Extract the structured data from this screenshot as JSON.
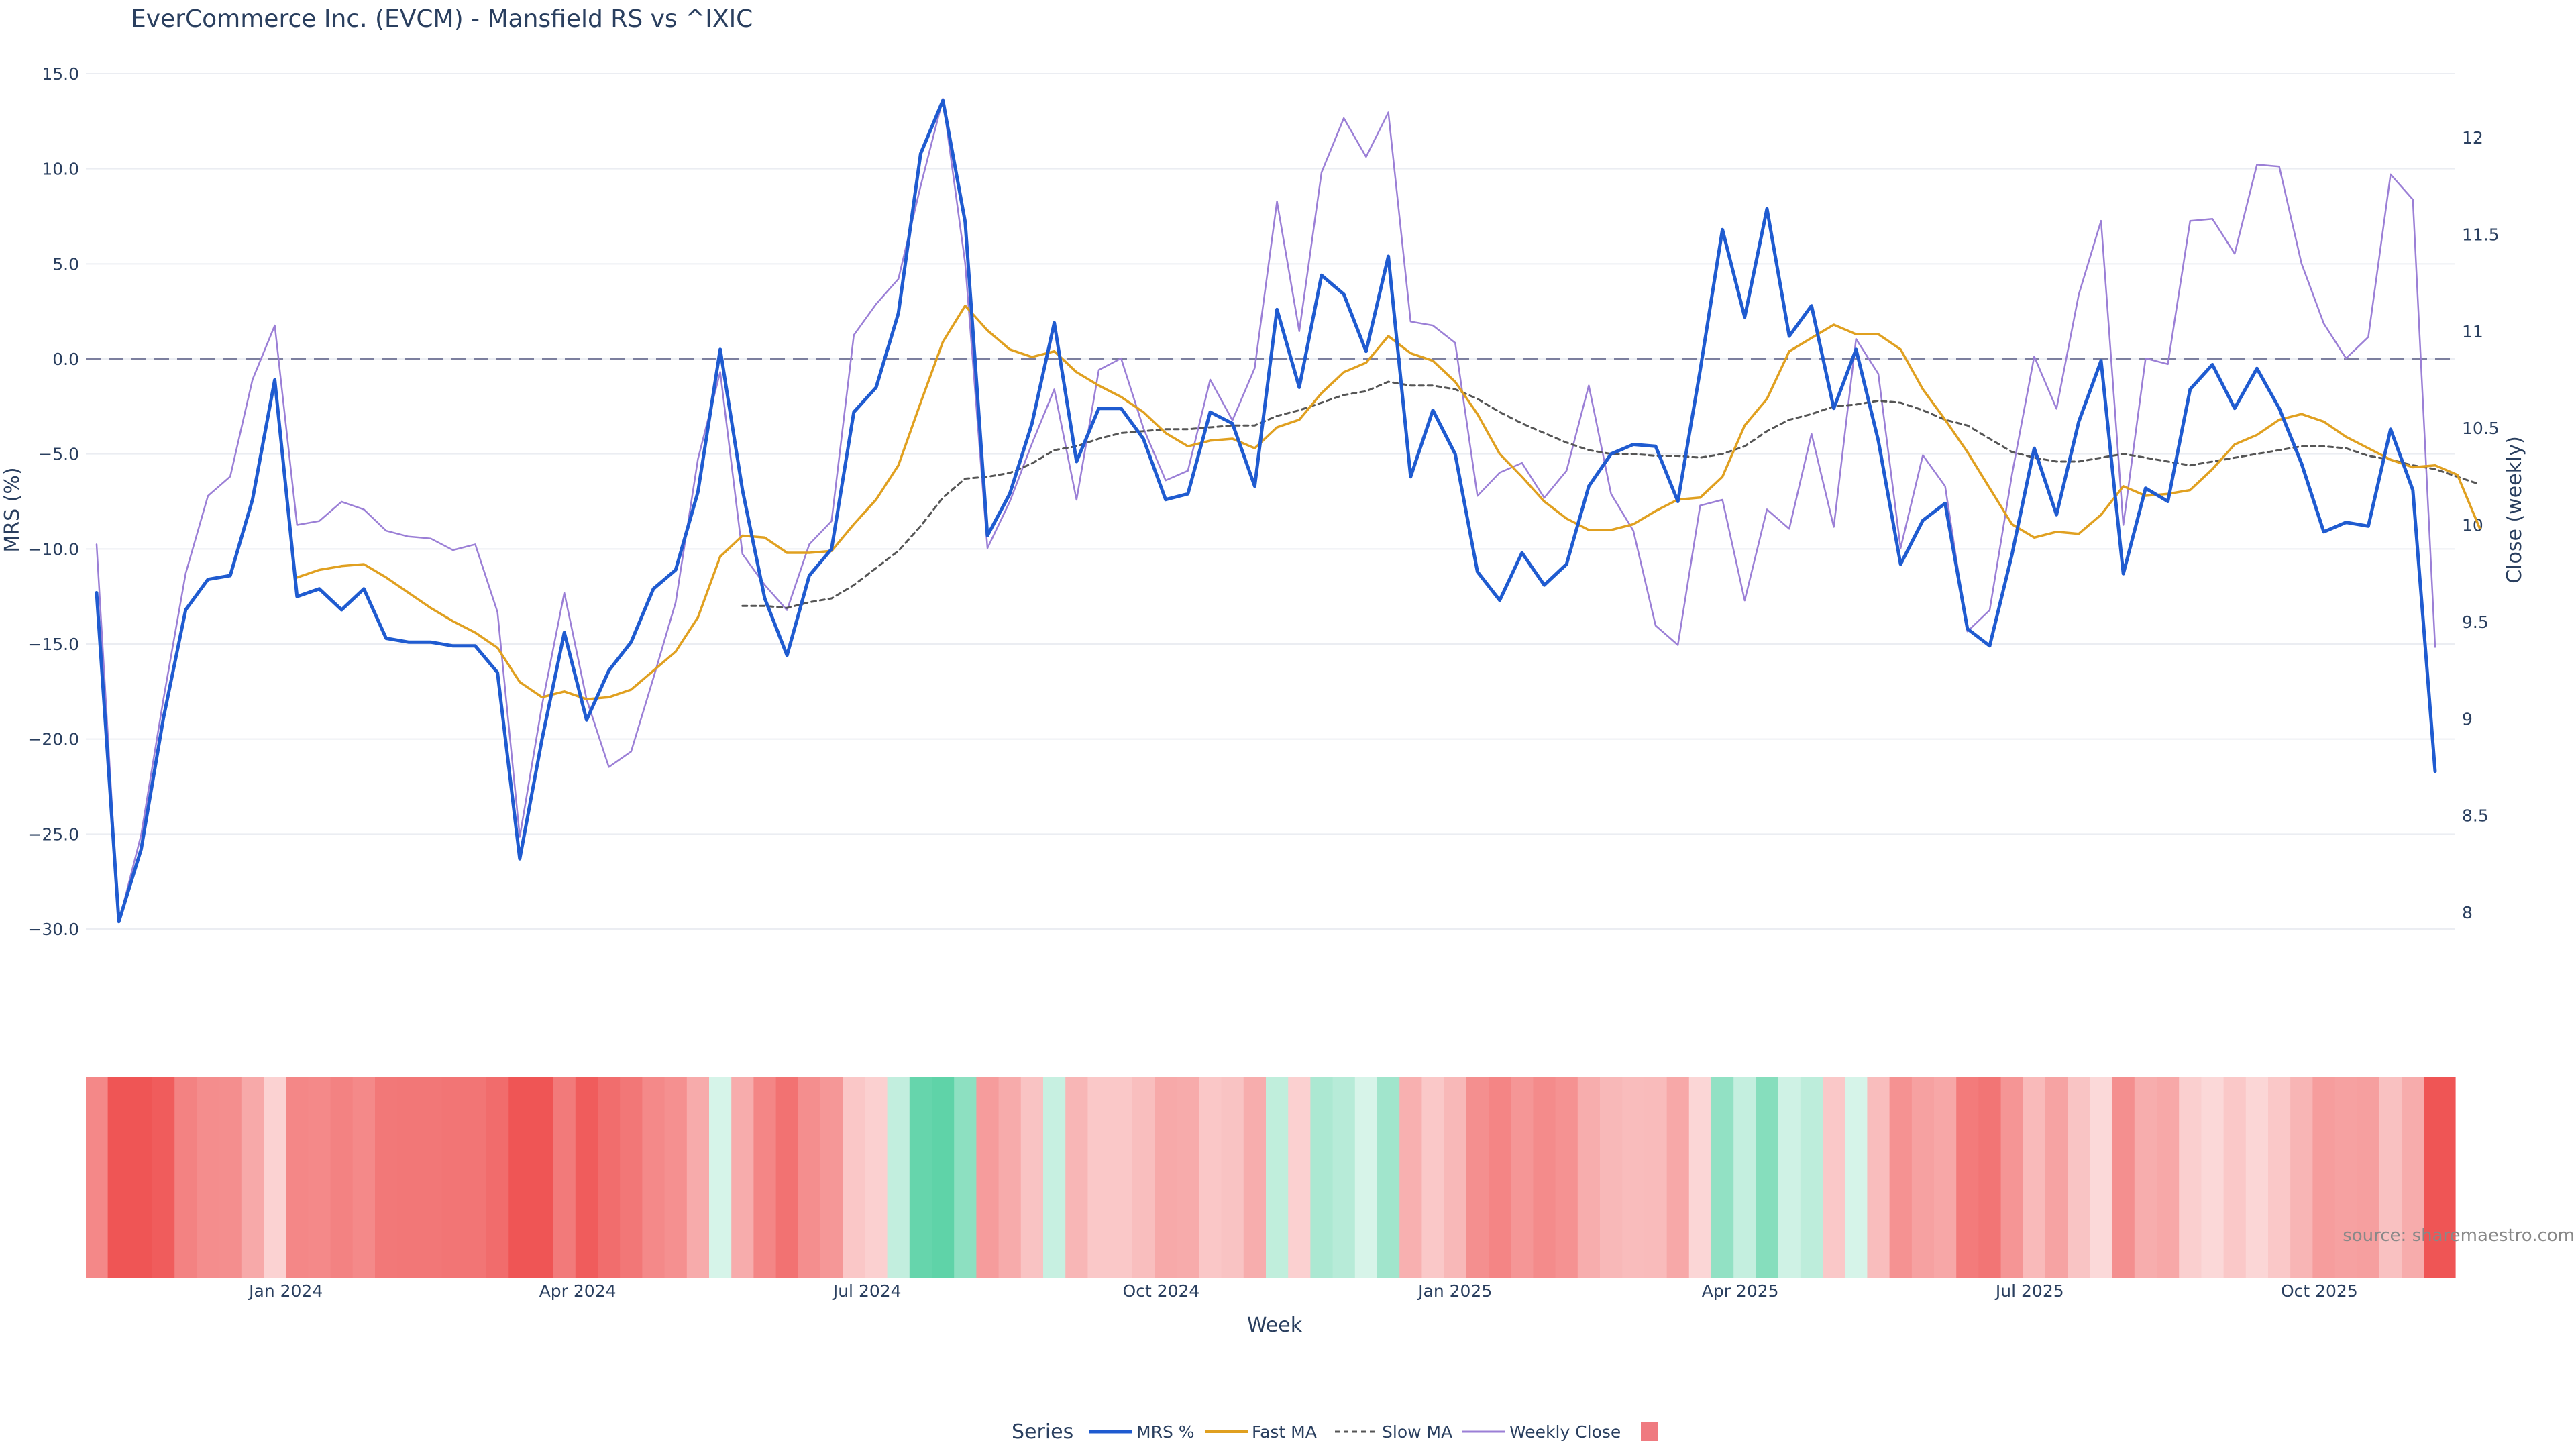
{
  "chart_data": {
    "type": "line",
    "title": "EverCommerce Inc. (EVCM) - Mansfield RS vs ^IXIC",
    "xlabel": "Week",
    "ylabel": "MRS (%)",
    "y2label": "Close (weekly)",
    "ylim": [
      -30,
      15
    ],
    "y2lim": [
      8,
      12
    ],
    "yticks": [
      "15.0",
      "10.0",
      "5.0",
      "0.0",
      "−5.0",
      "−10.0",
      "−15.0",
      "−20.0",
      "−25.0",
      "−30.0"
    ],
    "ytick_values": [
      15,
      10,
      5,
      0,
      -5,
      -10,
      -15,
      -20,
      -25,
      -30
    ],
    "y2ticks": [
      "12",
      "11.5",
      "11",
      "10.5",
      "10",
      "9.5",
      "9",
      "8.5",
      "8"
    ],
    "y2tick_values": [
      12,
      11.5,
      11,
      10.5,
      10,
      9.5,
      9,
      8.5,
      8
    ],
    "xticks": [
      {
        "label": "Jan 2024",
        "week": 8.5
      },
      {
        "label": "Apr 2024",
        "week": 21.6
      },
      {
        "label": "Jul 2024",
        "week": 34.6
      },
      {
        "label": "Oct 2024",
        "week": 47.8
      },
      {
        "label": "Jan 2025",
        "week": 61
      },
      {
        "label": "Apr 2025",
        "week": 73.8
      },
      {
        "label": "Jul 2025",
        "week": 86.8
      },
      {
        "label": "Oct 2025",
        "week": 99.8
      }
    ],
    "zero_line": 0,
    "weeks": 107,
    "series": [
      {
        "name": "MRS %",
        "color": "#1f5bd0",
        "axis": "y",
        "start": 0,
        "values": [
          -12.3,
          -29.6,
          -25.8,
          -18.9,
          -13.2,
          -11.6,
          -11.4,
          -7.4,
          -1.1,
          -12.5,
          -12.1,
          -13.2,
          -12.1,
          -14.7,
          -14.9,
          -14.9,
          -15.1,
          -15.1,
          -16.5,
          -26.3,
          -20,
          -14.4,
          -19,
          -16.4,
          -14.9,
          -12.1,
          -11.1,
          -7,
          0.5,
          -6.9,
          -12.6,
          -15.6,
          -11.4,
          -10,
          -2.8,
          -1.5,
          2.4,
          10.8,
          13.6,
          7.2,
          -9.3,
          -7.1,
          -3.4,
          1.9,
          -5.4,
          -2.6,
          -2.6,
          -4.2,
          -7.4,
          -7.1,
          -2.8,
          -3.4,
          -6.7,
          2.6,
          -1.5,
          4.4,
          3.4,
          0.4,
          5.4,
          -6.2,
          -2.7,
          -5,
          -11.2,
          -12.7,
          -10.2,
          -11.9,
          -10.8,
          -6.7,
          -5,
          -4.5,
          -4.6,
          -7.5,
          -0.6,
          6.8,
          2.2,
          7.9,
          1.2,
          2.8,
          -2.6,
          0.5,
          -4.3,
          -10.8,
          -8.5,
          -7.6,
          -14.2,
          -15.1,
          -10.3,
          -4.7,
          -8.2,
          -3.3,
          -0.1,
          -11.3,
          -6.8,
          -7.5,
          -1.6,
          -0.3,
          -2.6,
          -0.5,
          -2.6,
          -5.5,
          -9.1,
          -8.6,
          -8.8,
          -3.7,
          -6.9,
          -21.7
        ]
      },
      {
        "name": "Fast MA",
        "color": "#e0a020",
        "axis": "y",
        "start": 9,
        "values": [
          -11.5,
          -11.1,
          -10.9,
          -10.8,
          -11.5,
          -12.3,
          -13.1,
          -13.8,
          -14.4,
          -15.2,
          -17,
          -17.8,
          -17.5,
          -17.9,
          -17.8,
          -17.4,
          -16.4,
          -15.4,
          -13.6,
          -10.4,
          -9.3,
          -9.4,
          -10.2,
          -10.2,
          -10.1,
          -8.7,
          -7.4,
          -5.6,
          -2.3,
          0.9,
          2.8,
          1.5,
          0.5,
          0.1,
          0.4,
          -0.7,
          -1.4,
          -2,
          -2.8,
          -3.9,
          -4.6,
          -4.3,
          -4.2,
          -4.7,
          -3.6,
          -3.2,
          -1.8,
          -0.7,
          -0.2,
          1.2,
          0.3,
          -0.1,
          -1.2,
          -2.9,
          -5,
          -6.2,
          -7.5,
          -8.4,
          -9,
          -9,
          -8.7,
          -8,
          -7.4,
          -7.3,
          -6.2,
          -3.5,
          -2.1,
          0.4,
          1.1,
          1.8,
          1.3,
          1.3,
          0.5,
          -1.6,
          -3.2,
          -4.9,
          -6.8,
          -8.7,
          -9.4,
          -9.1,
          -9.2,
          -8.2,
          -6.7,
          -7.2,
          -7.1,
          -6.9,
          -5.8,
          -4.5,
          -4,
          -3.2,
          -2.9,
          -3.3,
          -4.1,
          -4.7,
          -5.3,
          -5.7,
          -5.6,
          -6.1,
          -8.9
        ]
      },
      {
        "name": "Slow MA",
        "color": "#555555",
        "axis": "y",
        "start": 29,
        "values": [
          -13,
          -13,
          -13.1,
          -12.8,
          -12.6,
          -11.9,
          -11,
          -10.1,
          -8.8,
          -7.3,
          -6.3,
          -6.2,
          -6,
          -5.5,
          -4.8,
          -4.6,
          -4.2,
          -3.9,
          -3.8,
          -3.7,
          -3.7,
          -3.6,
          -3.5,
          -3.5,
          -3,
          -2.7,
          -2.3,
          -1.9,
          -1.7,
          -1.2,
          -1.4,
          -1.4,
          -1.6,
          -2.1,
          -2.8,
          -3.4,
          -3.9,
          -4.4,
          -4.8,
          -5,
          -5,
          -5.1,
          -5.1,
          -5.2,
          -5,
          -4.6,
          -3.8,
          -3.2,
          -2.9,
          -2.5,
          -2.4,
          -2.2,
          -2.3,
          -2.7,
          -3.2,
          -3.5,
          -4.2,
          -4.9,
          -5.2,
          -5.4,
          -5.4,
          -5.2,
          -5,
          -5.2,
          -5.4,
          -5.6,
          -5.4,
          -5.2,
          -5,
          -4.8,
          -4.6,
          -4.6,
          -4.7,
          -5.1,
          -5.3,
          -5.6,
          -5.8,
          -6.2,
          -6.6
        ]
      },
      {
        "name": "Weekly Close",
        "color": "#9b7fd6",
        "axis": "y2",
        "start": 0,
        "values": [
          9.9,
          7.95,
          8.4,
          9.1,
          9.75,
          10.15,
          10.25,
          10.75,
          11.03,
          10.0,
          10.02,
          10.12,
          10.08,
          9.97,
          9.94,
          9.93,
          9.87,
          9.9,
          9.55,
          8.39,
          9.07,
          9.65,
          9.1,
          8.75,
          8.83,
          9.21,
          9.6,
          10.34,
          10.79,
          9.85,
          9.69,
          9.56,
          9.9,
          10.02,
          10.98,
          11.14,
          11.27,
          11.75,
          12.2,
          11.35,
          9.88,
          10.12,
          10.42,
          10.7,
          10.13,
          10.8,
          10.86,
          10.5,
          10.23,
          10.28,
          10.75,
          10.54,
          10.81,
          11.67,
          11.0,
          11.82,
          12.1,
          11.9,
          12.13,
          11.05,
          11.03,
          10.94,
          10.15,
          10.27,
          10.32,
          10.14,
          10.28,
          10.72,
          10.16,
          9.97,
          9.48,
          9.38,
          10.1,
          10.13,
          9.61,
          10.08,
          9.98,
          10.47,
          9.99,
          10.96,
          10.78,
          9.88,
          10.36,
          10.2,
          9.45,
          9.56,
          10.26,
          10.87,
          10.6,
          11.19,
          11.57,
          10.0,
          10.86,
          10.83,
          11.57,
          11.58,
          11.4,
          11.86,
          11.85,
          11.35,
          11.04,
          10.86,
          10.97,
          11.81,
          11.68,
          9.37
        ]
      }
    ],
    "heatmap": {
      "description": "MRS color strip (green = positive, red = negative)",
      "values": [
        -12.3,
        -29.6,
        -25.8,
        -18.9,
        -13.2,
        -11.6,
        -11.4,
        -7.4,
        -1.1,
        -12.5,
        -12.1,
        -13.2,
        -12.1,
        -14.7,
        -14.9,
        -14.9,
        -15.1,
        -15.1,
        -16.5,
        -26.3,
        -20,
        -14.4,
        -19,
        -16.4,
        -14.9,
        -12.1,
        -11.1,
        -7,
        0.5,
        -6.9,
        -12.6,
        -15.6,
        -11.4,
        -10,
        -2.8,
        -1.5,
        2.4,
        10.8,
        13.6,
        7.2,
        -9.3,
        -7.1,
        -3.4,
        1.9,
        -5.4,
        -2.6,
        -2.6,
        -4.2,
        -7.4,
        -7.1,
        -2.8,
        -3.4,
        -6.7,
        2.6,
        -1.5,
        4.4,
        3.4,
        0.4,
        5.4,
        -6.2,
        -2.7,
        -5,
        -11.2,
        -12.7,
        -10.2,
        -11.9,
        -10.8,
        -6.7,
        -5,
        -4.5,
        -4.6,
        -7.5,
        -0.6,
        6.8,
        2.2,
        7.9,
        1.2,
        2.8,
        -2.6,
        0.5,
        -4.3,
        -10.8,
        -8.5,
        -7.6,
        -14.2,
        -15.1,
        -10.3,
        -4.7,
        -8.2,
        -3.3,
        -0.1,
        -11.3,
        -6.8,
        -7.5,
        -1.6,
        -0.3,
        -2.6,
        -0.5,
        -2.6,
        -5.5,
        -9.1,
        -8.6,
        -8.8,
        -3.7,
        -6.9,
        -21.7
      ]
    },
    "legend": {
      "title": "Series",
      "placement": "bottom-center",
      "items": [
        "MRS %",
        "Fast MA",
        "Slow MA",
        "Weekly Close",
        ""
      ]
    }
  },
  "source_note": "source: sharemaestro.com",
  "colors": {
    "negative": "#ef5555",
    "positive": "#5fd3a8",
    "grid": "#ebedf2",
    "zero_line": "#7c7f9e"
  }
}
